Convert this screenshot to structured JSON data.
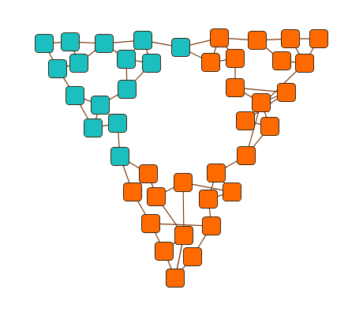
{
  "graph": {
    "colors": {
      "teal": "#1bbfbf",
      "orange": "#ff6a00",
      "edge": "#7a3b12"
    },
    "nodes": [
      {
        "id": "t1",
        "group": "teal"
      },
      {
        "id": "t2",
        "group": "teal"
      },
      {
        "id": "t3",
        "group": "teal"
      },
      {
        "id": "t4",
        "group": "teal"
      },
      {
        "id": "t5",
        "group": "teal"
      },
      {
        "id": "t6",
        "group": "teal"
      },
      {
        "id": "t7",
        "group": "teal"
      },
      {
        "id": "t8",
        "group": "teal"
      },
      {
        "id": "t9",
        "group": "teal"
      },
      {
        "id": "t10",
        "group": "teal"
      },
      {
        "id": "t11",
        "group": "teal"
      },
      {
        "id": "t12",
        "group": "teal"
      },
      {
        "id": "t13",
        "group": "teal"
      },
      {
        "id": "t14",
        "group": "teal"
      },
      {
        "id": "t15",
        "group": "teal"
      },
      {
        "id": "t16",
        "group": "teal"
      },
      {
        "id": "r1",
        "group": "orange"
      },
      {
        "id": "r2",
        "group": "orange"
      },
      {
        "id": "r3",
        "group": "orange"
      },
      {
        "id": "r4",
        "group": "orange"
      },
      {
        "id": "r5",
        "group": "orange"
      },
      {
        "id": "r6",
        "group": "orange"
      },
      {
        "id": "r7",
        "group": "orange"
      },
      {
        "id": "r8",
        "group": "orange"
      },
      {
        "id": "r9",
        "group": "orange"
      },
      {
        "id": "r10",
        "group": "orange"
      },
      {
        "id": "r11",
        "group": "orange"
      },
      {
        "id": "r12",
        "group": "orange"
      },
      {
        "id": "r13",
        "group": "orange"
      },
      {
        "id": "r14",
        "group": "orange"
      },
      {
        "id": "r15",
        "group": "orange"
      },
      {
        "id": "b1",
        "group": "orange"
      },
      {
        "id": "b2",
        "group": "orange"
      },
      {
        "id": "b3",
        "group": "orange"
      },
      {
        "id": "b4",
        "group": "orange"
      },
      {
        "id": "b5",
        "group": "orange"
      },
      {
        "id": "b6",
        "group": "orange"
      },
      {
        "id": "b7",
        "group": "orange"
      },
      {
        "id": "b8",
        "group": "orange"
      },
      {
        "id": "b9",
        "group": "orange"
      },
      {
        "id": "b10",
        "group": "orange"
      },
      {
        "id": "b11",
        "group": "orange"
      },
      {
        "id": "b12",
        "group": "orange"
      },
      {
        "id": "b13",
        "group": "orange"
      },
      {
        "id": "b14",
        "group": "orange"
      }
    ],
    "edges": [
      [
        "t1",
        "t2"
      ],
      [
        "t2",
        "t3"
      ],
      [
        "t3",
        "t4"
      ],
      [
        "t4",
        "t5"
      ],
      [
        "t1",
        "t6"
      ],
      [
        "t2",
        "t7"
      ],
      [
        "t6",
        "t7"
      ],
      [
        "t6",
        "t8"
      ],
      [
        "t7",
        "t3"
      ],
      [
        "t3",
        "t9"
      ],
      [
        "t4",
        "t9"
      ],
      [
        "t4",
        "t10"
      ],
      [
        "t9",
        "t10"
      ],
      [
        "t9",
        "t11"
      ],
      [
        "t10",
        "t11"
      ],
      [
        "t8",
        "t12"
      ],
      [
        "t11",
        "t12"
      ],
      [
        "t8",
        "t13"
      ],
      [
        "t12",
        "t13"
      ],
      [
        "t12",
        "t14"
      ],
      [
        "t13",
        "t14"
      ],
      [
        "t14",
        "t15"
      ],
      [
        "t15",
        "b1"
      ],
      [
        "t15",
        "b2"
      ],
      [
        "t5",
        "r1"
      ],
      [
        "t5",
        "r2"
      ],
      [
        "r1",
        "r3"
      ],
      [
        "r3",
        "r4"
      ],
      [
        "r4",
        "r5"
      ],
      [
        "r1",
        "r2"
      ],
      [
        "r2",
        "r6"
      ],
      [
        "r1",
        "r6"
      ],
      [
        "r3",
        "r7"
      ],
      [
        "r4",
        "r8"
      ],
      [
        "r7",
        "r8"
      ],
      [
        "r5",
        "r8"
      ],
      [
        "r6",
        "r9"
      ],
      [
        "r9",
        "r10"
      ],
      [
        "r9",
        "r11"
      ],
      [
        "r10",
        "r11"
      ],
      [
        "r8",
        "r12"
      ],
      [
        "r12",
        "r10"
      ],
      [
        "r11",
        "r13"
      ],
      [
        "r12",
        "r13"
      ],
      [
        "r11",
        "r14"
      ],
      [
        "r13",
        "r14"
      ],
      [
        "r14",
        "r15"
      ],
      [
        "r15",
        "b5"
      ],
      [
        "r15",
        "b6"
      ],
      [
        "b1",
        "b2"
      ],
      [
        "b1",
        "b3"
      ],
      [
        "b3",
        "b4"
      ],
      [
        "b4",
        "b5"
      ],
      [
        "b5",
        "b6"
      ],
      [
        "b2",
        "b7"
      ],
      [
        "b3",
        "b8"
      ],
      [
        "b4",
        "b8"
      ],
      [
        "b6",
        "b9"
      ],
      [
        "b7",
        "b9"
      ],
      [
        "b7",
        "b10"
      ],
      [
        "b9",
        "b11"
      ],
      [
        "b10",
        "b12"
      ],
      [
        "b11",
        "b12"
      ],
      [
        "b10",
        "b13"
      ],
      [
        "b12",
        "b13"
      ],
      [
        "b13",
        "b14"
      ]
    ]
  }
}
